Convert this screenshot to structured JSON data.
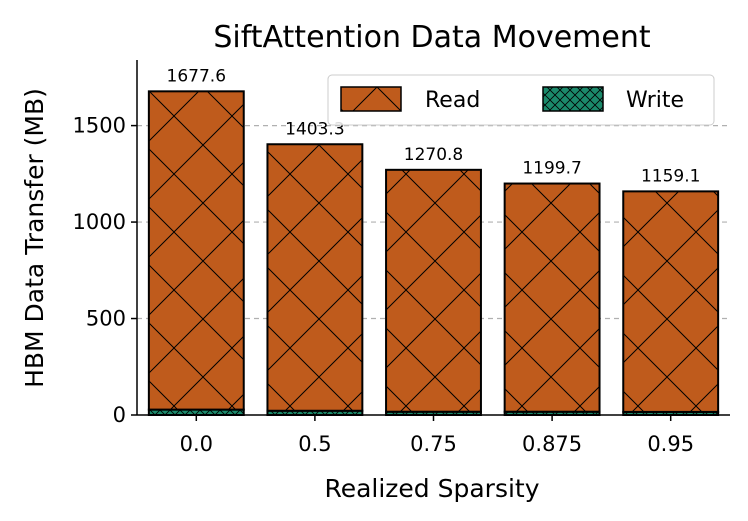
{
  "chart_data": {
    "type": "bar",
    "stacked": true,
    "title": "SiftAttention Data Movement",
    "xlabel": "Realized Sparsity",
    "ylabel": "HBM Data Transfer (MB)",
    "categories": [
      "0.0",
      "0.5",
      "0.75",
      "0.875",
      "0.95"
    ],
    "series": [
      {
        "name": "Read",
        "values": [
          1649.6,
          1381.3,
          1253.8,
          1182.7,
          1143.1
        ],
        "color": "#bf5b1c",
        "hatch": "x"
      },
      {
        "name": "Write",
        "values": [
          28.0,
          22.0,
          17.0,
          17.0,
          16.0
        ],
        "color": "#1b8a6b",
        "hatch": "xx"
      }
    ],
    "totals_labels": [
      "1677.6",
      "1403.3",
      "1270.8",
      "1199.7",
      "1159.1"
    ],
    "totals": [
      1677.6,
      1403.3,
      1270.8,
      1199.7,
      1159.1
    ],
    "ylim": [
      0,
      1840
    ],
    "yticks": [
      0,
      500,
      1000,
      1500
    ],
    "grid": "y-dashed",
    "legend_position": "top-right"
  }
}
